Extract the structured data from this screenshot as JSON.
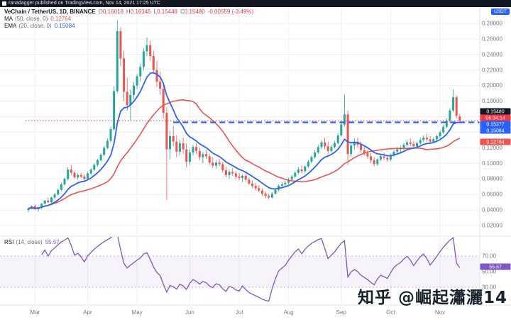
{
  "header": {
    "attribution": "ranadagger published on TradingView.com, Nov 14, 2021 17:25 UTC"
  },
  "symbol_row": {
    "title": "VeChain / TetherUS, 1D, BINANCE",
    "o_label": "O",
    "o": "0.16018",
    "h_label": "H",
    "h": "0.16345",
    "l_label": "L",
    "l": "0.15448",
    "c_label": "C",
    "c": "0.15480",
    "change": "-0.00559 (-3.49%)"
  },
  "indicators": {
    "ma": {
      "name": "MA",
      "params": "(50, close, 0)",
      "value": "0.12764",
      "color": "#ef5350"
    },
    "ema": {
      "name": "EMA",
      "params": "(20, close, 0)",
      "value": "0.15084",
      "color": "#2962ff"
    },
    "rsi": {
      "name": "RSI",
      "params": "(14, close)",
      "value": "55.57",
      "color": "#7e57c2"
    }
  },
  "axis": {
    "currency": "USDT",
    "price_ticks": [
      0.28,
      0.26,
      0.24,
      0.22,
      0.2,
      0.18,
      0.16,
      0.14,
      0.12,
      0.1,
      0.08,
      0.06,
      0.04,
      0.02
    ],
    "rsi_ticks": [
      70,
      50,
      30
    ],
    "months": [
      {
        "label": "Mar",
        "idx": 2
      },
      {
        "label": "Apr",
        "idx": 18
      },
      {
        "label": "May",
        "idx": 33
      },
      {
        "label": "Jun",
        "idx": 49
      },
      {
        "label": "Jul",
        "idx": 64
      },
      {
        "label": "Aug",
        "idx": 79
      },
      {
        "label": "Sep",
        "idx": 95
      },
      {
        "label": "Oct",
        "idx": 110
      },
      {
        "label": "Nov",
        "idx": 125
      }
    ]
  },
  "chips": [
    {
      "name": "last_price",
      "text": "0.15480",
      "bg": "#131722"
    },
    {
      "name": "countdown",
      "text": "06:34:14",
      "bg": "#f23645"
    },
    {
      "name": "line",
      "text": "0.15277",
      "bg": "#2962ff"
    },
    {
      "name": "ema",
      "text": "0.15084",
      "bg": "#2962ff"
    },
    {
      "name": "ma",
      "text": "0.12764",
      "bg": "#ef5350"
    },
    {
      "name": "rsi",
      "text": "55.57",
      "bg": "#7e57c2"
    }
  ],
  "watermark": {
    "text": "知乎 @崛起瀟灑14"
  },
  "chart_data": {
    "type": "candlestick",
    "title": "VeChain / TetherUS, 1D, BINANCE",
    "ylim": [
      0.02,
      0.28
    ],
    "x_axis": [
      "Mar",
      "Apr",
      "May",
      "Jun",
      "Jul",
      "Aug",
      "Sep",
      "Oct",
      "Nov"
    ],
    "levels": {
      "resistance": 0.15277,
      "resistance_start_idx": 44,
      "last_price": 0.1548
    },
    "last_candle": {
      "open": 0.16018,
      "high": 0.16345,
      "low": 0.15448,
      "close": 0.1548
    },
    "indicator_values": {
      "ma50": 0.12764,
      "ema20": 0.15084,
      "rsi14": 55.57
    },
    "candles": [
      [
        0.04,
        0.043,
        0.037,
        0.042
      ],
      [
        0.042,
        0.046,
        0.041,
        0.045
      ],
      [
        0.045,
        0.047,
        0.04,
        0.041
      ],
      [
        0.041,
        0.044,
        0.038,
        0.043
      ],
      [
        0.043,
        0.049,
        0.042,
        0.048
      ],
      [
        0.048,
        0.053,
        0.047,
        0.052
      ],
      [
        0.052,
        0.056,
        0.049,
        0.05
      ],
      [
        0.05,
        0.057,
        0.049,
        0.056
      ],
      [
        0.056,
        0.062,
        0.054,
        0.06
      ],
      [
        0.06,
        0.068,
        0.058,
        0.066
      ],
      [
        0.066,
        0.075,
        0.064,
        0.073
      ],
      [
        0.073,
        0.082,
        0.071,
        0.08
      ],
      [
        0.08,
        0.095,
        0.078,
        0.092
      ],
      [
        0.092,
        0.098,
        0.085,
        0.088
      ],
      [
        0.088,
        0.09,
        0.08,
        0.082
      ],
      [
        0.082,
        0.087,
        0.079,
        0.085
      ],
      [
        0.085,
        0.088,
        0.081,
        0.083
      ],
      [
        0.083,
        0.086,
        0.078,
        0.08
      ],
      [
        0.08,
        0.089,
        0.079,
        0.087
      ],
      [
        0.087,
        0.094,
        0.085,
        0.092
      ],
      [
        0.092,
        0.1,
        0.09,
        0.098
      ],
      [
        0.098,
        0.106,
        0.096,
        0.104
      ],
      [
        0.104,
        0.113,
        0.102,
        0.111
      ],
      [
        0.111,
        0.122,
        0.109,
        0.12
      ],
      [
        0.12,
        0.132,
        0.118,
        0.129
      ],
      [
        0.129,
        0.147,
        0.127,
        0.144
      ],
      [
        0.144,
        0.199,
        0.142,
        0.193
      ],
      [
        0.193,
        0.284,
        0.19,
        0.27
      ],
      [
        0.27,
        0.275,
        0.225,
        0.235
      ],
      [
        0.235,
        0.245,
        0.18,
        0.192
      ],
      [
        0.192,
        0.21,
        0.168,
        0.175
      ],
      [
        0.175,
        0.195,
        0.155,
        0.188
      ],
      [
        0.188,
        0.205,
        0.182,
        0.2
      ],
      [
        0.2,
        0.215,
        0.195,
        0.212
      ],
      [
        0.212,
        0.228,
        0.205,
        0.224
      ],
      [
        0.224,
        0.248,
        0.22,
        0.244
      ],
      [
        0.244,
        0.262,
        0.238,
        0.252
      ],
      [
        0.252,
        0.258,
        0.232,
        0.238
      ],
      [
        0.238,
        0.245,
        0.215,
        0.22
      ],
      [
        0.22,
        0.232,
        0.198,
        0.205
      ],
      [
        0.205,
        0.218,
        0.188,
        0.196
      ],
      [
        0.196,
        0.203,
        0.158,
        0.165
      ],
      [
        0.165,
        0.172,
        0.053,
        0.118
      ],
      [
        0.118,
        0.142,
        0.105,
        0.135
      ],
      [
        0.135,
        0.148,
        0.122,
        0.128
      ],
      [
        0.128,
        0.136,
        0.108,
        0.115
      ],
      [
        0.115,
        0.13,
        0.11,
        0.126
      ],
      [
        0.126,
        0.133,
        0.112,
        0.118
      ],
      [
        0.118,
        0.126,
        0.095,
        0.102
      ],
      [
        0.102,
        0.118,
        0.098,
        0.114
      ],
      [
        0.114,
        0.124,
        0.11,
        0.121
      ],
      [
        0.121,
        0.126,
        0.112,
        0.116
      ],
      [
        0.116,
        0.12,
        0.104,
        0.108
      ],
      [
        0.108,
        0.115,
        0.1,
        0.112
      ],
      [
        0.112,
        0.117,
        0.106,
        0.109
      ],
      [
        0.109,
        0.112,
        0.098,
        0.101
      ],
      [
        0.101,
        0.108,
        0.094,
        0.097
      ],
      [
        0.097,
        0.104,
        0.093,
        0.101
      ],
      [
        0.101,
        0.106,
        0.096,
        0.099
      ],
      [
        0.099,
        0.102,
        0.088,
        0.091
      ],
      [
        0.091,
        0.096,
        0.082,
        0.085
      ],
      [
        0.085,
        0.092,
        0.08,
        0.089
      ],
      [
        0.089,
        0.094,
        0.084,
        0.087
      ],
      [
        0.087,
        0.09,
        0.08,
        0.083
      ],
      [
        0.083,
        0.088,
        0.078,
        0.081
      ],
      [
        0.081,
        0.086,
        0.076,
        0.084
      ],
      [
        0.084,
        0.087,
        0.077,
        0.079
      ],
      [
        0.079,
        0.082,
        0.072,
        0.074
      ],
      [
        0.074,
        0.078,
        0.068,
        0.071
      ],
      [
        0.071,
        0.075,
        0.065,
        0.068
      ],
      [
        0.068,
        0.072,
        0.063,
        0.065
      ],
      [
        0.065,
        0.068,
        0.058,
        0.061
      ],
      [
        0.061,
        0.064,
        0.055,
        0.058
      ],
      [
        0.058,
        0.061,
        0.054,
        0.056
      ],
      [
        0.056,
        0.063,
        0.055,
        0.061
      ],
      [
        0.061,
        0.068,
        0.06,
        0.066
      ],
      [
        0.066,
        0.073,
        0.064,
        0.071
      ],
      [
        0.071,
        0.076,
        0.068,
        0.073
      ],
      [
        0.073,
        0.078,
        0.07,
        0.075
      ],
      [
        0.075,
        0.081,
        0.073,
        0.079
      ],
      [
        0.079,
        0.085,
        0.077,
        0.083
      ],
      [
        0.083,
        0.09,
        0.081,
        0.088
      ],
      [
        0.088,
        0.095,
        0.086,
        0.092
      ],
      [
        0.092,
        0.097,
        0.087,
        0.09
      ],
      [
        0.09,
        0.098,
        0.088,
        0.096
      ],
      [
        0.096,
        0.104,
        0.094,
        0.102
      ],
      [
        0.102,
        0.11,
        0.1,
        0.108
      ],
      [
        0.108,
        0.117,
        0.106,
        0.114
      ],
      [
        0.114,
        0.124,
        0.112,
        0.121
      ],
      [
        0.121,
        0.13,
        0.118,
        0.127
      ],
      [
        0.127,
        0.133,
        0.118,
        0.122
      ],
      [
        0.122,
        0.128,
        0.112,
        0.116
      ],
      [
        0.116,
        0.124,
        0.114,
        0.121
      ],
      [
        0.121,
        0.129,
        0.119,
        0.126
      ],
      [
        0.126,
        0.139,
        0.124,
        0.136
      ],
      [
        0.136,
        0.155,
        0.134,
        0.15
      ],
      [
        0.15,
        0.188,
        0.148,
        0.163
      ],
      [
        0.163,
        0.168,
        0.098,
        0.112
      ],
      [
        0.112,
        0.128,
        0.108,
        0.123
      ],
      [
        0.123,
        0.132,
        0.118,
        0.128
      ],
      [
        0.128,
        0.133,
        0.12,
        0.124
      ],
      [
        0.124,
        0.128,
        0.114,
        0.117
      ],
      [
        0.117,
        0.122,
        0.11,
        0.113
      ],
      [
        0.113,
        0.118,
        0.106,
        0.109
      ],
      [
        0.109,
        0.113,
        0.1,
        0.104
      ],
      [
        0.104,
        0.108,
        0.096,
        0.099
      ],
      [
        0.099,
        0.107,
        0.097,
        0.105
      ],
      [
        0.105,
        0.112,
        0.103,
        0.109
      ],
      [
        0.109,
        0.114,
        0.104,
        0.107
      ],
      [
        0.107,
        0.111,
        0.102,
        0.105
      ],
      [
        0.105,
        0.112,
        0.103,
        0.11
      ],
      [
        0.11,
        0.117,
        0.108,
        0.115
      ],
      [
        0.115,
        0.121,
        0.112,
        0.118
      ],
      [
        0.118,
        0.123,
        0.114,
        0.12
      ],
      [
        0.12,
        0.126,
        0.117,
        0.124
      ],
      [
        0.124,
        0.13,
        0.121,
        0.127
      ],
      [
        0.127,
        0.132,
        0.122,
        0.125
      ],
      [
        0.125,
        0.129,
        0.119,
        0.122
      ],
      [
        0.122,
        0.128,
        0.12,
        0.126
      ],
      [
        0.126,
        0.133,
        0.124,
        0.13
      ],
      [
        0.13,
        0.136,
        0.127,
        0.133
      ],
      [
        0.133,
        0.138,
        0.128,
        0.131
      ],
      [
        0.131,
        0.135,
        0.125,
        0.128
      ],
      [
        0.128,
        0.133,
        0.126,
        0.131
      ],
      [
        0.131,
        0.137,
        0.129,
        0.135
      ],
      [
        0.135,
        0.142,
        0.132,
        0.14
      ],
      [
        0.14,
        0.149,
        0.138,
        0.147
      ],
      [
        0.147,
        0.158,
        0.145,
        0.155
      ],
      [
        0.155,
        0.171,
        0.153,
        0.168
      ],
      [
        0.168,
        0.195,
        0.166,
        0.185
      ],
      [
        0.185,
        0.187,
        0.158,
        0.161
      ],
      [
        0.16018,
        0.16345,
        0.15448,
        0.1548
      ]
    ]
  }
}
